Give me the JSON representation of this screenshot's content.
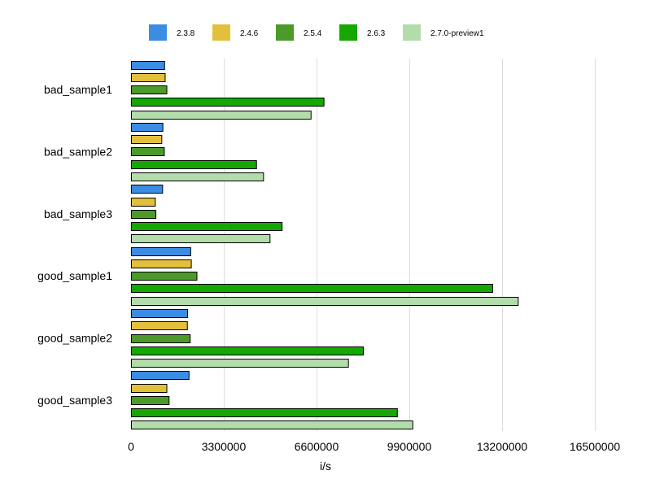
{
  "chart_data": {
    "type": "bar",
    "orientation": "horizontal",
    "title": "",
    "xlabel": "i/s",
    "ylabel": "",
    "xlim": [
      0,
      16500000
    ],
    "xticks": [
      0,
      3300000,
      6600000,
      9900000,
      13200000,
      16500000
    ],
    "xtick_labels": [
      "0",
      "3300000",
      "6600000",
      "9900000",
      "13200000",
      "16500000"
    ],
    "grid": true,
    "legend_position": "top",
    "categories": [
      "bad_sample1",
      "bad_sample2",
      "bad_sample3",
      "good_sample1",
      "good_sample2",
      "good_sample3"
    ],
    "series": [
      {
        "name": "2.3.8",
        "color": "#3b8ce3",
        "values": [
          1180000,
          1120000,
          1110000,
          2110000,
          2000000,
          2050000
        ]
      },
      {
        "name": "2.4.6",
        "color": "#e3c03b",
        "values": [
          1200000,
          1080000,
          850000,
          2130000,
          1990000,
          1260000
        ]
      },
      {
        "name": "2.5.4",
        "color": "#4c9a2a",
        "values": [
          1260000,
          1170000,
          870000,
          2330000,
          2090000,
          1340000
        ]
      },
      {
        "name": "2.6.3",
        "color": "#14a800",
        "values": [
          6850000,
          4450000,
          5360000,
          12850000,
          8250000,
          9460000
        ]
      },
      {
        "name": "2.7.0-preview1",
        "color": "#b2dcaa",
        "values": [
          6390000,
          4700000,
          4930000,
          13760000,
          7720000,
          10010000
        ]
      }
    ]
  }
}
